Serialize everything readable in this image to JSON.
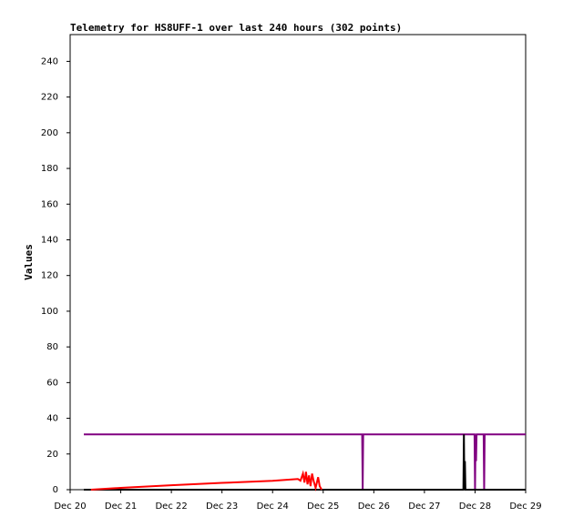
{
  "chart_data": {
    "type": "line",
    "title": "Telemetry for HS8UFF-1 over last 240 hours (302 points)",
    "y_label": "Values",
    "xlim": [
      0,
      9
    ],
    "ylim": [
      0,
      255
    ],
    "xticks": [
      {
        "value": 0,
        "label": "Dec 20"
      },
      {
        "value": 1,
        "label": "Dec 21"
      },
      {
        "value": 2,
        "label": "Dec 22"
      },
      {
        "value": 3,
        "label": "Dec 23"
      },
      {
        "value": 4,
        "label": "Dec 24"
      },
      {
        "value": 5,
        "label": "Dec 25"
      },
      {
        "value": 6,
        "label": "Dec 26"
      },
      {
        "value": 7,
        "label": "Dec 27"
      },
      {
        "value": 8,
        "label": "Dec 28"
      },
      {
        "value": 9,
        "label": "Dec 29"
      }
    ],
    "yticks": [
      0,
      20,
      40,
      60,
      80,
      100,
      120,
      140,
      160,
      180,
      200,
      220,
      240
    ],
    "series": [
      {
        "color": "#800080",
        "x": [
          0.27,
          5.77,
          5.78,
          5.79,
          7.99,
          8.0,
          8.01,
          8.02,
          8.03,
          8.17,
          8.18,
          8.19,
          9
        ],
        "values": [
          31,
          31,
          0,
          31,
          31,
          0,
          31,
          16,
          31,
          31,
          0,
          31,
          31
        ]
      },
      {
        "color": "#000000",
        "x": [
          0.27,
          7.77,
          7.78,
          7.79,
          7.8,
          7.81,
          9
        ],
        "values": [
          0,
          0,
          31,
          0,
          16,
          0,
          0
        ]
      },
      {
        "color": "#ff0000",
        "x": [
          0.41,
          1.0,
          2.0,
          3.0,
          4.0,
          4.5,
          4.55,
          4.6,
          4.63,
          4.66,
          4.69,
          4.72,
          4.75,
          4.78,
          4.81,
          4.85,
          4.9,
          4.93,
          4.97
        ],
        "values": [
          0,
          1,
          2.5,
          3.8,
          5,
          6,
          5,
          9,
          4,
          10,
          3,
          8,
          2,
          9,
          5,
          1,
          7,
          2,
          0
        ]
      }
    ]
  }
}
